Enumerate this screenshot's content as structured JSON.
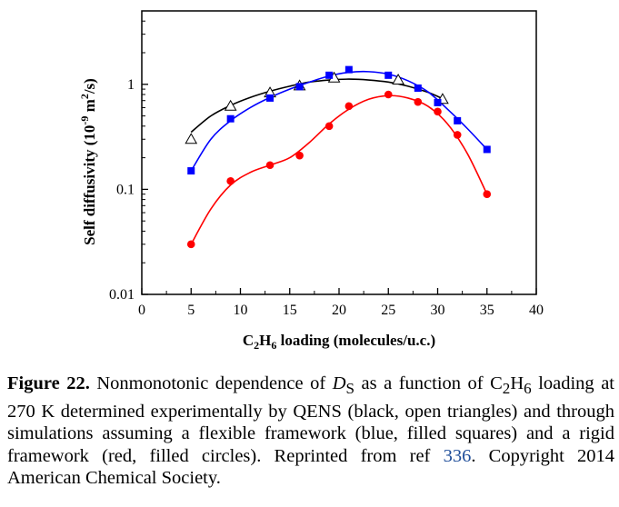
{
  "chart_data": {
    "type": "scatter",
    "title": "",
    "xlabel": {
      "prefix": "C",
      "sub1": "2",
      "mid": "H",
      "sub2": "6",
      "suffix": " loading (molecules/u.c.)"
    },
    "ylabel": {
      "main": "Self diffusivity (10",
      "sup1": "-9",
      "mid": " m",
      "sup2": "2",
      "suffix": "/s)"
    },
    "xlim": [
      0,
      40
    ],
    "ylim": [
      0.01,
      5
    ],
    "yscale": "log",
    "xticks": [
      "0",
      "5",
      "10",
      "15",
      "20",
      "25",
      "30",
      "35",
      "40"
    ],
    "yticks": [
      "0.01",
      "0.1",
      "1"
    ],
    "grid": false,
    "series": [
      {
        "marker": "open-triangle",
        "color": "#000000",
        "x": [
          5,
          9,
          13,
          16,
          19.5,
          26,
          30.5
        ],
        "y": [
          0.3,
          0.62,
          0.83,
          0.97,
          1.15,
          1.1,
          0.72
        ],
        "fit_x": [
          5,
          7,
          9,
          11,
          13,
          15,
          17,
          19,
          21,
          23,
          25,
          27,
          29,
          30.5
        ],
        "fit_y": [
          0.35,
          0.5,
          0.63,
          0.75,
          0.86,
          0.96,
          1.05,
          1.1,
          1.12,
          1.1,
          1.05,
          0.96,
          0.84,
          0.73
        ]
      },
      {
        "marker": "filled-square",
        "color": "#0000ff",
        "x": [
          5,
          9,
          13,
          16,
          19,
          21,
          25,
          28,
          30,
          32,
          35
        ],
        "y": [
          0.15,
          0.47,
          0.74,
          0.95,
          1.22,
          1.38,
          1.22,
          0.92,
          0.67,
          0.45,
          0.24
        ],
        "fit_x": [
          5,
          7,
          9,
          11,
          13,
          15,
          17,
          19,
          21,
          23,
          25,
          27,
          29,
          31,
          33,
          35
        ],
        "fit_y": [
          0.15,
          0.3,
          0.45,
          0.6,
          0.75,
          0.9,
          1.05,
          1.2,
          1.3,
          1.32,
          1.25,
          1.08,
          0.85,
          0.58,
          0.38,
          0.24
        ]
      },
      {
        "marker": "filled-circle",
        "color": "#ff0000",
        "x": [
          5,
          9,
          13,
          16,
          19,
          21,
          25,
          28,
          30,
          32,
          35
        ],
        "y": [
          0.03,
          0.12,
          0.17,
          0.21,
          0.4,
          0.62,
          0.8,
          0.68,
          0.55,
          0.33,
          0.09
        ],
        "fit_x": [
          5,
          7,
          9,
          11,
          13,
          15,
          17,
          19,
          21,
          23,
          25,
          27,
          29,
          31,
          33,
          35
        ],
        "fit_y": [
          0.03,
          0.065,
          0.11,
          0.145,
          0.17,
          0.2,
          0.28,
          0.42,
          0.58,
          0.72,
          0.78,
          0.74,
          0.62,
          0.42,
          0.22,
          0.09
        ]
      }
    ]
  },
  "caption": {
    "figure_label": "Figure 22.",
    "t1": " Nonmonotonic dependence of ",
    "ds_main": "D",
    "ds_sub": "S",
    "t2": " as a function of C",
    "c_sub": "2",
    "t3": "H",
    "h_sub": "6",
    "t4": " loading at 270 K determined experimentally by QENS (black, open triangles) and through simulations assuming a flexible framework (blue, filled squares) and a rigid framework (red, filled circles). Reprinted from ref ",
    "ref": "336",
    "t5": ". Copyright 2014 American Chemical Society."
  }
}
